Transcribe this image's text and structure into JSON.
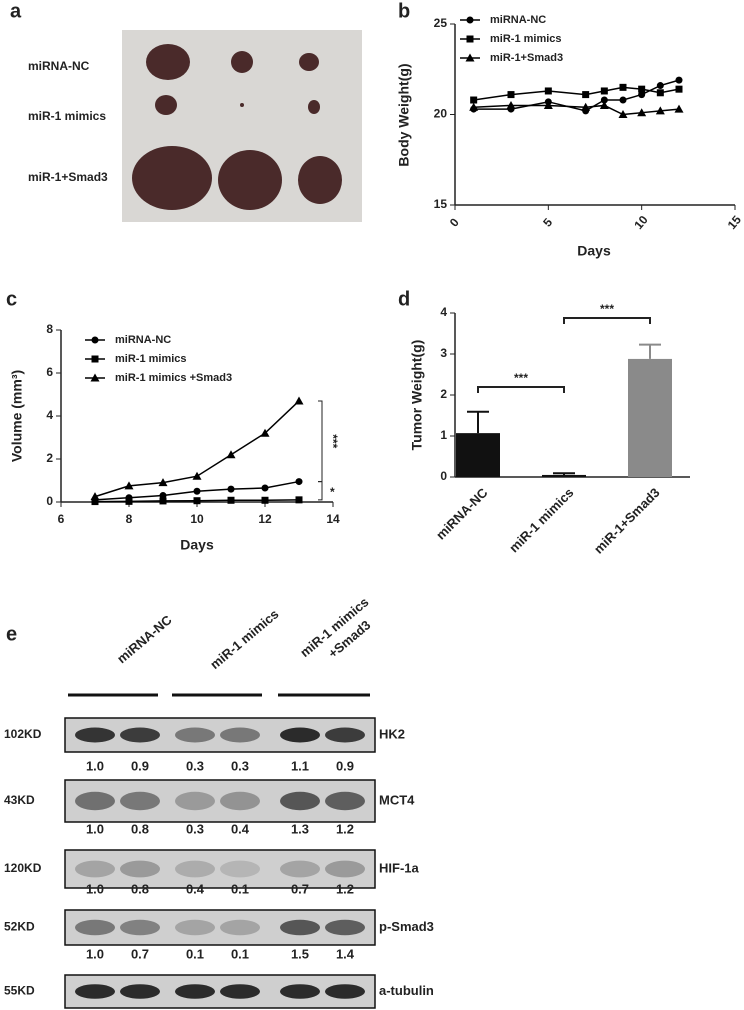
{
  "panel_a": {
    "label": "a",
    "rows": [
      "miRNA-NC",
      "miR-1 mimics",
      "miR-1+Smad3"
    ]
  },
  "chart_data": [
    {
      "type": "line",
      "label": "b",
      "x_label": "Days",
      "y_label": "Body Weight(g)",
      "x": [
        1,
        3,
        5,
        7,
        8,
        9,
        10,
        11,
        12
      ],
      "xlim": [
        0,
        15
      ],
      "xticks": [
        0,
        5,
        10,
        15
      ],
      "ylim": [
        15,
        25
      ],
      "yticks": [
        15,
        20,
        25
      ],
      "series": [
        {
          "name": "miRNA-NC",
          "color": "#000000",
          "marker": "circle",
          "values": [
            20.3,
            20.3,
            20.7,
            20.2,
            20.8,
            20.8,
            21.1,
            21.6,
            21.9
          ]
        },
        {
          "name": "miR-1 mimics",
          "color": "#000000",
          "marker": "square",
          "values": [
            20.8,
            21.1,
            21.3,
            21.1,
            21.3,
            21.5,
            21.4,
            21.2,
            21.4
          ]
        },
        {
          "name": "miR-1+Smad3",
          "color": "#000000",
          "marker": "triangle",
          "values": [
            20.4,
            20.5,
            20.5,
            20.4,
            20.5,
            20.0,
            20.1,
            20.2,
            20.3
          ]
        }
      ]
    },
    {
      "type": "line",
      "label": "c",
      "x_label": "Days",
      "y_label": "Volume (mm³)",
      "x": [
        7,
        8,
        9,
        10,
        11,
        12,
        13
      ],
      "xlim": [
        6,
        14
      ],
      "xticks": [
        6,
        8,
        10,
        12,
        14
      ],
      "ylim": [
        0,
        8
      ],
      "yticks": [
        0,
        2,
        4,
        6,
        8
      ],
      "annotations": [
        "***",
        "*"
      ],
      "series": [
        {
          "name": "miRNA-NC",
          "color": "#000000",
          "marker": "circle",
          "values": [
            0.1,
            0.2,
            0.3,
            0.5,
            0.6,
            0.65,
            0.95
          ]
        },
        {
          "name": "miR-1 mimics",
          "color": "#000000",
          "marker": "square",
          "values": [
            0.02,
            0.03,
            0.05,
            0.06,
            0.08,
            0.08,
            0.1
          ]
        },
        {
          "name": "miR-1 mimics +Smad3",
          "color": "#000000",
          "marker": "triangle",
          "values": [
            0.25,
            0.75,
            0.9,
            1.2,
            2.2,
            3.2,
            4.7
          ]
        }
      ]
    },
    {
      "type": "bar",
      "label": "d",
      "y_label": "Tumor Weight(g)",
      "categories": [
        "miRNA-NC",
        "miR-1 mimics",
        "miR-1+Smad3"
      ],
      "values": [
        1.07,
        0.05,
        2.88
      ],
      "errors": [
        0.52,
        0.04,
        0.35
      ],
      "colors": [
        "#111111",
        "#111111",
        "#8a8a8a"
      ],
      "ylim": [
        0,
        4
      ],
      "yticks": [
        0,
        1,
        2,
        3,
        4
      ],
      "annotations": [
        "***",
        "***"
      ]
    }
  ],
  "panel_e": {
    "label": "e",
    "groups": [
      "miRNA-NC",
      "miR-1 mimics",
      "miR-1 mimics",
      "+Smad3"
    ],
    "blots": [
      {
        "size": "102KD",
        "protein": "HK2",
        "values": [
          "1.0",
          "0.9",
          "0.3",
          "0.3",
          "1.1",
          "0.9"
        ]
      },
      {
        "size": "43KD",
        "protein": "MCT4",
        "values": [
          "1.0",
          "0.8",
          "0.3",
          "0.4",
          "1.3",
          "1.2"
        ]
      },
      {
        "size": "120KD",
        "protein": "HIF-1a",
        "values": [
          "1.0",
          "0.8",
          "0.4",
          "0.1",
          "0.7",
          "1.2"
        ]
      },
      {
        "size": "52KD",
        "protein": "p-Smad3",
        "values": [
          "1.0",
          "0.7",
          "0.1",
          "0.1",
          "1.5",
          "1.4"
        ]
      },
      {
        "size": "55KD",
        "protein": "a-tubulin"
      }
    ]
  }
}
